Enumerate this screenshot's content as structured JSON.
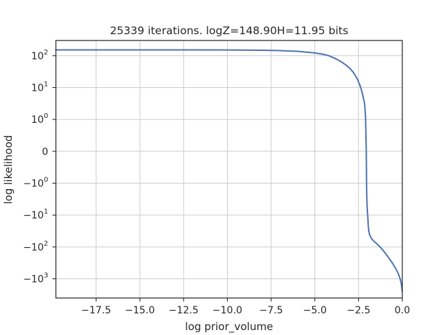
{
  "chart_data": {
    "type": "line",
    "title": "25339 iterations. logZ=148.90H=11.95 bits",
    "xlabel": "log prior_volume",
    "ylabel": "log likelihood",
    "xlim": [
      -19.8,
      0
    ],
    "yscale": "symlog",
    "ylim": [
      -4000,
      300
    ],
    "grid": true,
    "x_ticks": [
      {
        "value": -17.5,
        "label": "−17.5"
      },
      {
        "value": -15.0,
        "label": "−15.0"
      },
      {
        "value": -12.5,
        "label": "−12.5"
      },
      {
        "value": -10.0,
        "label": "−10.0"
      },
      {
        "value": -7.5,
        "label": "−7.5"
      },
      {
        "value": -5.0,
        "label": "−5.0"
      },
      {
        "value": -2.5,
        "label": "−2.5"
      },
      {
        "value": 0.0,
        "label": "0.0"
      }
    ],
    "y_ticks": [
      {
        "value": 100,
        "base": "10",
        "exp": "2"
      },
      {
        "value": 10,
        "base": "10",
        "exp": "1"
      },
      {
        "value": 1,
        "base": "10",
        "exp": "0"
      },
      {
        "value": 0,
        "base": "0",
        "exp": ""
      },
      {
        "value": -1,
        "base": "−10",
        "exp": "0"
      },
      {
        "value": -10,
        "base": "−10",
        "exp": "1"
      },
      {
        "value": -100,
        "base": "−10",
        "exp": "2"
      },
      {
        "value": -1000,
        "base": "−10",
        "exp": "3"
      }
    ],
    "series": [
      {
        "color": "#4c72b0",
        "x": [
          -19.8,
          -15,
          -12,
          -10,
          -8,
          -7,
          -6,
          -5.5,
          -5,
          -4.5,
          -4.2,
          -3.8,
          -3.5,
          -3.2,
          -3.0,
          -2.8,
          -2.6,
          -2.45,
          -2.35,
          -2.25,
          -2.15,
          -2.1,
          -2.06,
          -2.04,
          -2.02,
          -2.0,
          -1.98,
          -1.96,
          -1.95,
          -1.92,
          -1.88,
          -1.8,
          -1.7,
          -1.55,
          -1.4,
          -1.2,
          -1.0,
          -0.8,
          -0.6,
          -0.4,
          -0.25,
          -0.15,
          -0.07,
          0.0
        ],
        "y": [
          152,
          152,
          151.5,
          150.5,
          148,
          144,
          137,
          130,
          122,
          110,
          100,
          80,
          65,
          50,
          40,
          30,
          20,
          13,
          9,
          5.5,
          3,
          1.2,
          0,
          -1.5,
          -4,
          -7,
          -10,
          -15,
          -20,
          -30,
          -40,
          -50,
          -60,
          -72,
          -85,
          -110,
          -150,
          -210,
          -300,
          -450,
          -650,
          -900,
          -1300,
          -2500
        ]
      }
    ]
  }
}
